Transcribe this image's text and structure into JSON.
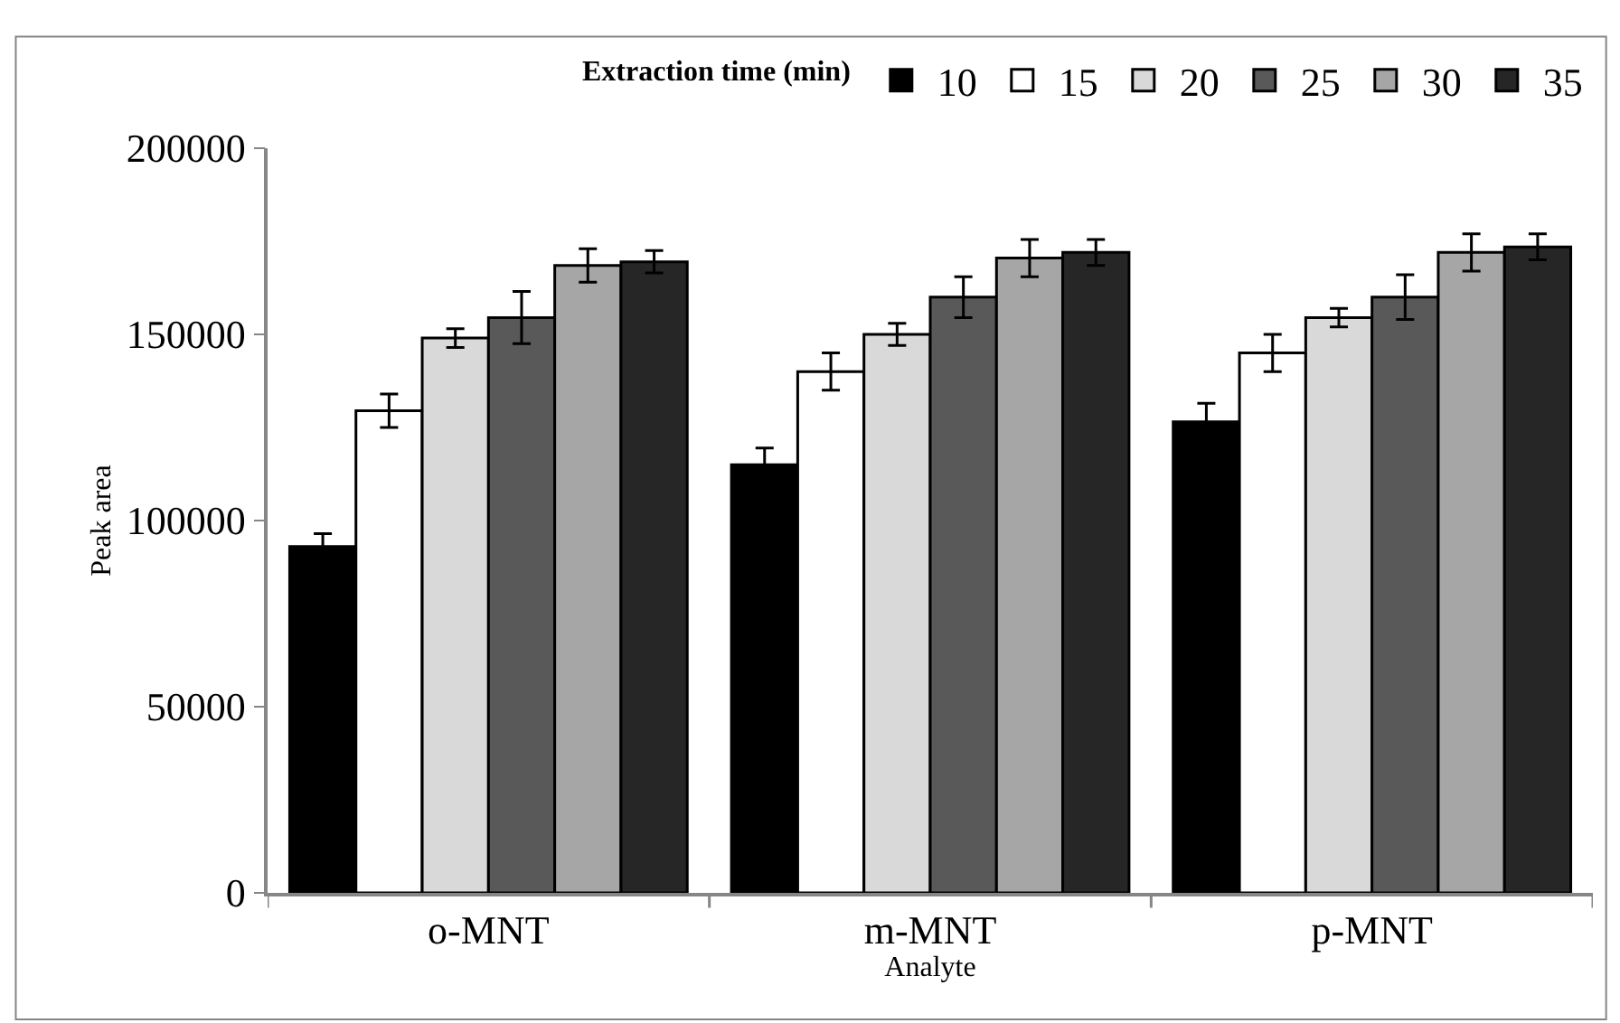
{
  "chart_data": {
    "type": "bar",
    "xlabel": "Analyte",
    "ylabel": "Peak area",
    "legend_title": "Extraction time (min)",
    "categories": [
      "o-MNT",
      "m-MNT",
      "p-MNT"
    ],
    "series": [
      {
        "name": "10",
        "color": "#000000",
        "values": [
          93000,
          115000,
          126500
        ],
        "errors": [
          3500,
          4500,
          5000
        ]
      },
      {
        "name": "15",
        "color": "#ffffff",
        "values": [
          129500,
          140000,
          145000
        ],
        "errors": [
          4500,
          5000,
          5000
        ]
      },
      {
        "name": "20",
        "color": "#d9d9d9",
        "values": [
          149000,
          150000,
          154500
        ],
        "errors": [
          2500,
          3000,
          2500
        ]
      },
      {
        "name": "25",
        "color": "#595959",
        "values": [
          154500,
          160000,
          160000
        ],
        "errors": [
          7000,
          5500,
          6000
        ]
      },
      {
        "name": "30",
        "color": "#a6a6a6",
        "values": [
          168500,
          170500,
          172000
        ],
        "errors": [
          4500,
          5000,
          5000
        ]
      },
      {
        "name": "35",
        "color": "#262626",
        "values": [
          169500,
          172000,
          173500
        ],
        "errors": [
          3000,
          3500,
          3500
        ]
      }
    ],
    "ylim": [
      0,
      200000
    ],
    "yticks": [
      0,
      50000,
      100000,
      150000,
      200000
    ],
    "legend": "top right"
  }
}
